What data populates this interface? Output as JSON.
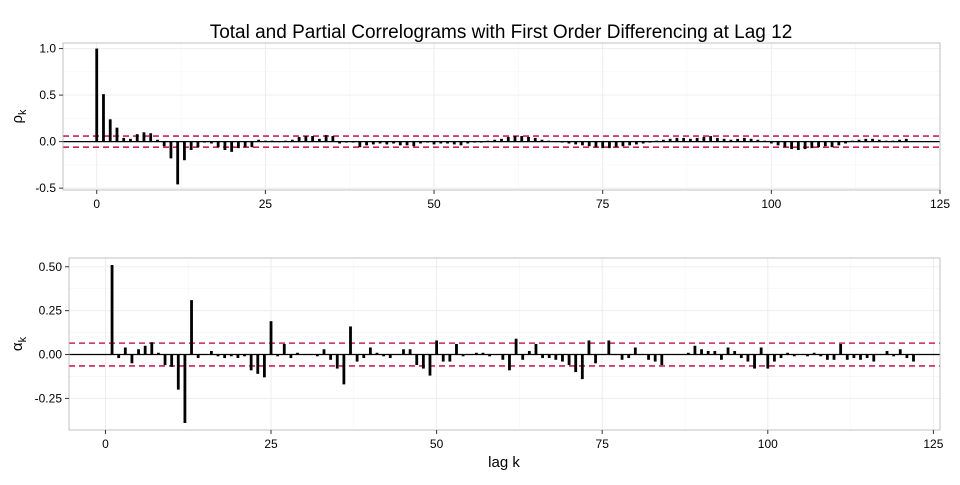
{
  "chart_data": {
    "type": "bar",
    "title": "Total and Partial Correlograms with First Order Differencing at Lag 12",
    "xlabel": "lag k",
    "grid": true,
    "colors": {
      "bar": "#000000",
      "zero_line": "#000000",
      "confidence_band": "#cc2255",
      "grid": "#ebebeb",
      "panel_border": "#b3b3b3"
    },
    "panels": [
      {
        "id": "acf",
        "ylabel_symbol": "ρ",
        "ylabel_subscript": "k",
        "xlim": [
          -5,
          125
        ],
        "ylim": [
          -0.52,
          1.06
        ],
        "xticks": [
          0,
          25,
          50,
          75,
          100,
          125
        ],
        "xtick_labels": [
          "0",
          "25",
          "50",
          "75",
          "100",
          "125"
        ],
        "yticks": [
          1.0,
          0.5,
          0.0,
          -0.5
        ],
        "ytick_labels": [
          "1.0",
          "0.5",
          "0.0",
          "-0.5"
        ],
        "confidence_band": [
          0.06,
          -0.06
        ],
        "start_lag": 0,
        "values": [
          1.0,
          0.51,
          0.24,
          0.15,
          0.04,
          0.03,
          0.08,
          0.1,
          0.09,
          0.02,
          -0.05,
          -0.18,
          -0.46,
          -0.2,
          -0.09,
          -0.06,
          -0.01,
          -0.02,
          -0.06,
          -0.09,
          -0.11,
          -0.07,
          -0.06,
          -0.06,
          0.02,
          0.01,
          0.01,
          0.0,
          0.01,
          0.02,
          0.05,
          0.06,
          0.06,
          0.03,
          0.07,
          0.06,
          -0.02,
          -0.01,
          -0.01,
          -0.06,
          -0.04,
          -0.03,
          -0.02,
          -0.03,
          -0.02,
          -0.04,
          -0.04,
          -0.05,
          -0.02,
          -0.01,
          -0.03,
          -0.02,
          -0.02,
          -0.03,
          -0.04,
          -0.02,
          -0.01,
          -0.01,
          0.01,
          0.02,
          0.03,
          0.05,
          0.06,
          0.06,
          0.05,
          0.04,
          0.02,
          0.01,
          0.0,
          -0.01,
          -0.02,
          -0.03,
          -0.04,
          -0.05,
          -0.06,
          -0.07,
          -0.07,
          -0.06,
          -0.05,
          -0.04,
          -0.03,
          -0.02,
          -0.01,
          0.01,
          0.02,
          0.03,
          0.04,
          0.04,
          0.03,
          0.04,
          0.05,
          0.06,
          0.04,
          0.03,
          0.02,
          0.03,
          0.04,
          0.03,
          0.02,
          0.01,
          -0.02,
          -0.04,
          -0.06,
          -0.08,
          -0.09,
          -0.08,
          -0.07,
          -0.06,
          -0.05,
          -0.06,
          -0.04,
          -0.02,
          0.01,
          0.02,
          0.03,
          0.03,
          0.02,
          0.01,
          0.01,
          0.02,
          0.03
        ]
      },
      {
        "id": "pacf",
        "ylabel_symbol": "α",
        "ylabel_subscript": "k",
        "xlim": [
          -5.5,
          126
        ],
        "ylim": [
          -0.43,
          0.55
        ],
        "xticks": [
          0,
          25,
          50,
          75,
          100,
          125
        ],
        "xtick_labels": [
          "0",
          "25",
          "50",
          "75",
          "100",
          "125"
        ],
        "yticks": [
          0.5,
          0.25,
          0.0,
          -0.25
        ],
        "ytick_labels": [
          "0.50",
          "0.25",
          "0.00",
          "-0.25"
        ],
        "confidence_band": [
          0.065,
          -0.065
        ],
        "start_lag": 1,
        "values": [
          0.51,
          -0.02,
          0.04,
          -0.05,
          0.03,
          0.05,
          0.07,
          0.01,
          -0.06,
          -0.07,
          -0.2,
          -0.39,
          0.31,
          -0.02,
          0.0,
          0.02,
          -0.01,
          -0.02,
          -0.01,
          -0.02,
          -0.01,
          -0.09,
          -0.11,
          -0.13,
          0.19,
          -0.01,
          0.06,
          -0.02,
          0.01,
          0.0,
          0.0,
          -0.01,
          0.03,
          -0.03,
          -0.08,
          -0.17,
          0.16,
          -0.04,
          -0.02,
          0.04,
          0.01,
          -0.01,
          -0.02,
          0.0,
          0.03,
          0.03,
          -0.06,
          -0.08,
          -0.12,
          0.08,
          -0.04,
          -0.04,
          0.06,
          -0.01,
          0.0,
          0.01,
          0.01,
          -0.01,
          0.0,
          -0.03,
          -0.09,
          0.09,
          -0.03,
          0.02,
          0.06,
          -0.02,
          -0.02,
          -0.03,
          -0.04,
          -0.06,
          -0.1,
          -0.14,
          0.08,
          -0.05,
          0.0,
          0.08,
          0.0,
          -0.03,
          -0.02,
          0.04,
          0.0,
          -0.03,
          -0.04,
          -0.06,
          0.0,
          0.0,
          0.0,
          0.01,
          0.05,
          0.03,
          0.02,
          0.02,
          -0.03,
          0.04,
          0.02,
          -0.02,
          -0.04,
          -0.08,
          0.04,
          -0.08,
          -0.04,
          -0.02,
          0.01,
          -0.01,
          0.0,
          -0.01,
          0.01,
          -0.01,
          -0.03,
          -0.03,
          0.06,
          -0.03,
          -0.02,
          -0.03,
          -0.02,
          -0.04,
          0.0,
          0.02,
          -0.01,
          0.03,
          -0.02,
          -0.04
        ]
      }
    ]
  }
}
